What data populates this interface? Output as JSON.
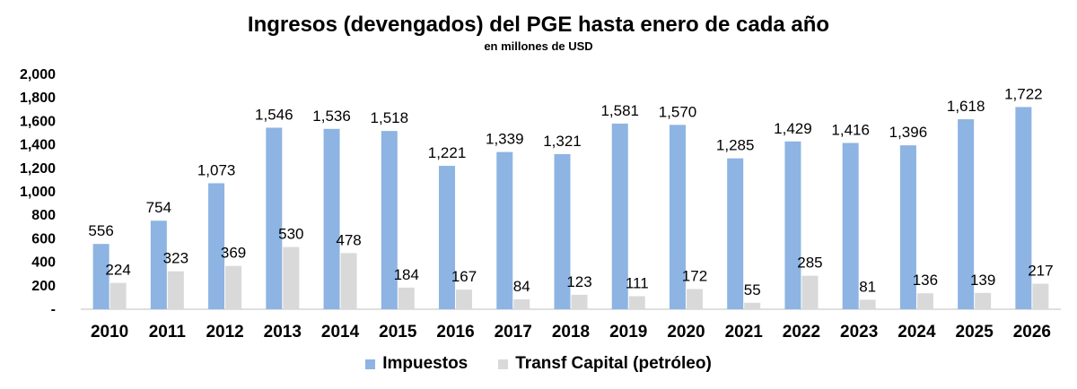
{
  "chart_data": {
    "type": "bar",
    "title": "Ingresos (devengados) del PGE hasta enero de cada año",
    "subtitle": "en millones de USD",
    "categories": [
      "2010",
      "2011",
      "2012",
      "2013",
      "2014",
      "2015",
      "2016",
      "2017",
      "2018",
      "2019",
      "2020",
      "2021",
      "2022",
      "2023",
      "2024",
      "2025",
      "2026"
    ],
    "series": [
      {
        "name": "Impuestos",
        "color": "#8DB4E2",
        "values": [
          556,
          754,
          1073,
          1546,
          1536,
          1518,
          1221,
          1339,
          1321,
          1581,
          1570,
          1285,
          1429,
          1416,
          1396,
          1618,
          1722
        ],
        "labels": [
          "556",
          "754",
          "1,073",
          "1,546",
          "1,536",
          "1,518",
          "1,221",
          "1,339",
          "1,321",
          "1,581",
          "1,570",
          "1,285",
          "1,429",
          "1,416",
          "1,396",
          "1,618",
          "1,722"
        ]
      },
      {
        "name": "Transf Capital (petróleo)",
        "color": "#D9D9D9",
        "values": [
          224,
          323,
          369,
          530,
          478,
          184,
          167,
          84,
          123,
          111,
          172,
          55,
          285,
          81,
          136,
          139,
          217
        ],
        "labels": [
          "224",
          "323",
          "369",
          "530",
          "478",
          "184",
          "167",
          "84",
          "123",
          "111",
          "172",
          "55",
          "285",
          "81",
          "136",
          "139",
          "217"
        ]
      }
    ],
    "ylim": [
      0,
      2000
    ],
    "yticks": [
      {
        "value": 0,
        "label": "-"
      },
      {
        "value": 200,
        "label": "200"
      },
      {
        "value": 400,
        "label": "400"
      },
      {
        "value": 600,
        "label": "600"
      },
      {
        "value": 800,
        "label": "800"
      },
      {
        "value": 1000,
        "label": "1,000"
      },
      {
        "value": 1200,
        "label": "1,200"
      },
      {
        "value": 1400,
        "label": "1,400"
      },
      {
        "value": 1600,
        "label": "1,600"
      },
      {
        "value": 1800,
        "label": "1,800"
      },
      {
        "value": 2000,
        "label": "2,000"
      }
    ],
    "grid": false,
    "legend_position": "bottom"
  }
}
